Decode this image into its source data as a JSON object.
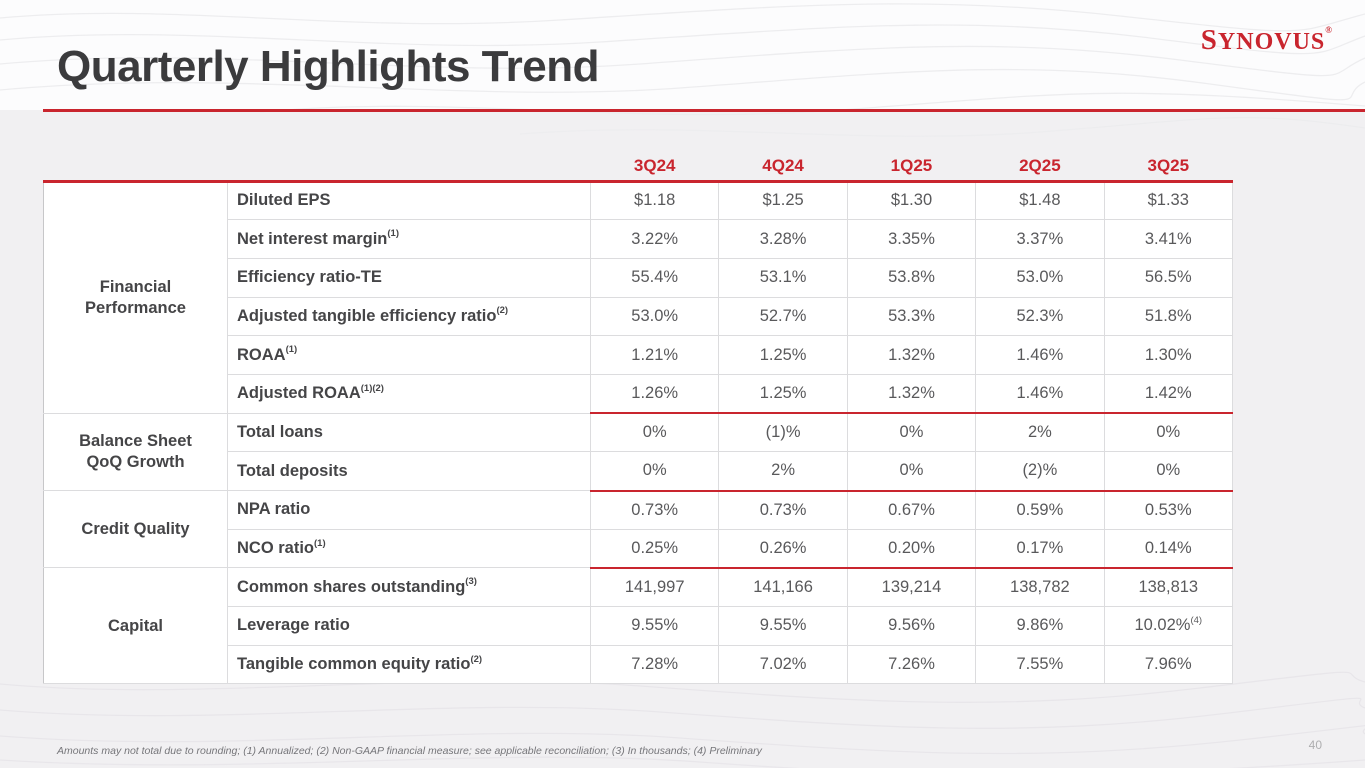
{
  "header": {
    "title": "Quarterly Highlights Trend"
  },
  "brand": {
    "logo_first": "S",
    "logo_rest": "YNOVUS",
    "logo_reg": "®",
    "brand_red": "#C9252E"
  },
  "table": {
    "quarter_columns": [
      "3Q24",
      "4Q24",
      "1Q25",
      "2Q25",
      "3Q25"
    ],
    "sections": [
      {
        "group": "Financial Performance",
        "rows": [
          {
            "label": "Diluted EPS",
            "sup": "",
            "values": [
              "$1.18",
              "$1.25",
              "$1.30",
              "$1.48",
              "$1.33"
            ]
          },
          {
            "label": "Net interest margin",
            "sup": "(1)",
            "values": [
              "3.22%",
              "3.28%",
              "3.35%",
              "3.37%",
              "3.41%"
            ]
          },
          {
            "label": "Efficiency ratio-TE",
            "sup": "",
            "values": [
              "55.4%",
              "53.1%",
              "53.8%",
              "53.0%",
              "56.5%"
            ]
          },
          {
            "label": "Adjusted tangible efficiency ratio",
            "sup": "(2)",
            "values": [
              "53.0%",
              "52.7%",
              "53.3%",
              "52.3%",
              "51.8%"
            ]
          },
          {
            "label": "ROAA",
            "sup": "(1)",
            "values": [
              "1.21%",
              "1.25%",
              "1.32%",
              "1.46%",
              "1.30%"
            ]
          },
          {
            "label": "Adjusted ROAA",
            "sup": "(1)(2)",
            "values": [
              "1.26%",
              "1.25%",
              "1.32%",
              "1.46%",
              "1.42%"
            ]
          }
        ]
      },
      {
        "group": "Balance Sheet QoQ Growth",
        "rows": [
          {
            "label": "Total loans",
            "sup": "",
            "values": [
              "0%",
              "(1)%",
              "0%",
              "2%",
              "0%"
            ]
          },
          {
            "label": "Total deposits",
            "sup": "",
            "values": [
              "0%",
              "2%",
              "0%",
              "(2)%",
              "0%"
            ]
          }
        ]
      },
      {
        "group": "Credit Quality",
        "rows": [
          {
            "label": "NPA ratio",
            "sup": "",
            "values": [
              "0.73%",
              "0.73%",
              "0.67%",
              "0.59%",
              "0.53%"
            ]
          },
          {
            "label": "NCO ratio",
            "sup": "(1)",
            "values": [
              "0.25%",
              "0.26%",
              "0.20%",
              "0.17%",
              "0.14%"
            ]
          }
        ]
      },
      {
        "group": "Capital",
        "rows": [
          {
            "label": "Common shares outstanding",
            "sup": "(3)",
            "values": [
              "141,997",
              "141,166",
              "139,214",
              "138,782",
              "138,813"
            ]
          },
          {
            "label": "Leverage ratio",
            "sup": "",
            "values": [
              "9.55%",
              "9.55%",
              "9.56%",
              "9.86%",
              {
                "text": "10.02%",
                "sup": "(4)"
              }
            ]
          },
          {
            "label": "Tangible common equity ratio",
            "sup": "(2)",
            "values": [
              "7.28%",
              "7.02%",
              "7.26%",
              "7.55%",
              "7.96%"
            ]
          }
        ]
      }
    ]
  },
  "footnote": "Amounts may not total due to rounding; (1) Annualized; (2) Non-GAAP financial measure; see applicable reconciliation; (3) In thousands; (4) Preliminary",
  "page_number": "40"
}
